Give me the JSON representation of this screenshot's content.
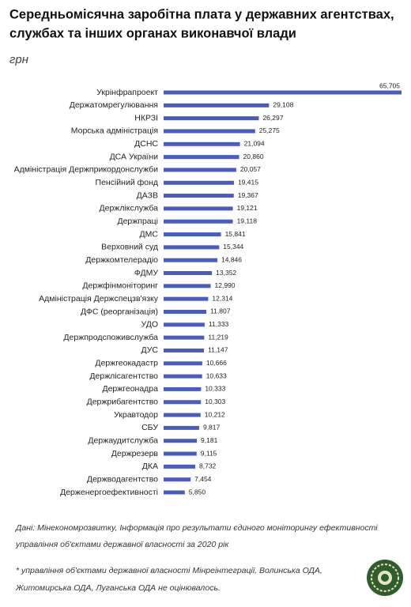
{
  "chart_data": {
    "type": "bar",
    "orientation": "horizontal",
    "title": [
      "Середньомісячна заробітна плата у державних агентствах,",
      "службах та інших органах виконавчої влади"
    ],
    "subtitle": "грн",
    "categories": [
      "Укрінфрапроект",
      "Держатомрегулювання",
      "НКРЗІ",
      "Морська адміністрація",
      "ДСНС",
      "ДСА України",
      "Адміністрація Держприкордонслужби",
      "Пенсійний фонд",
      "ДАЗВ",
      "Держлікслужба",
      "Держпраці",
      "ДМС",
      "Верховний суд",
      "Держкомтелерадіо",
      "ФДМУ",
      "Держфінмоніторинг",
      "Адміністрація Держспецзв'язку",
      "ДФС (реорганізація)",
      "УДО",
      "Держпродспоживслужба",
      "ДУС",
      "Держгеокадастр",
      "Держлісагентство",
      "Держгеонадра",
      "Держрибагентство",
      "Укравтодор",
      "СБУ",
      "Держаудитслужба",
      "Держрезерв",
      "ДКА",
      "Держводагентство",
      "Держенергоефективності"
    ],
    "values": [
      65705,
      29108,
      26297,
      25275,
      21094,
      20860,
      20057,
      19415,
      19367,
      19121,
      19118,
      15841,
      15344,
      14846,
      13352,
      12990,
      12314,
      11807,
      11333,
      11219,
      11147,
      10666,
      10633,
      10333,
      10303,
      10212,
      9817,
      9181,
      9115,
      8732,
      7454,
      5850
    ],
    "value_labels": [
      "65,705",
      "29,108",
      "26,297",
      "25,275",
      "21,094",
      "20,860",
      "20,057",
      "19,415",
      "19,367",
      "19,121",
      "19,118",
      "15,841",
      "15,344",
      "14,846",
      "13,352",
      "12,990",
      "12,314",
      "11,807",
      "11,333",
      "11,219",
      "11,147",
      "10,666",
      "10,633",
      "10,333",
      "10,303",
      "10,212",
      "9,817",
      "9,181",
      "9,115",
      "8,732",
      "7,454",
      "5,850"
    ],
    "color": "#4a5cc0",
    "source": [
      "Дані: Мінекономрозвитку, Інформація про результати єдиного моніторингу ефективності",
      "управління об'єктами державної власності за 2020 рік"
    ],
    "note": [
      "* управління об'єктами державної власності Мінреінтеграції, Волинська ОДА,",
      "Житомирська ОДА, Луганська ОДА  не оцінювалось."
    ]
  }
}
